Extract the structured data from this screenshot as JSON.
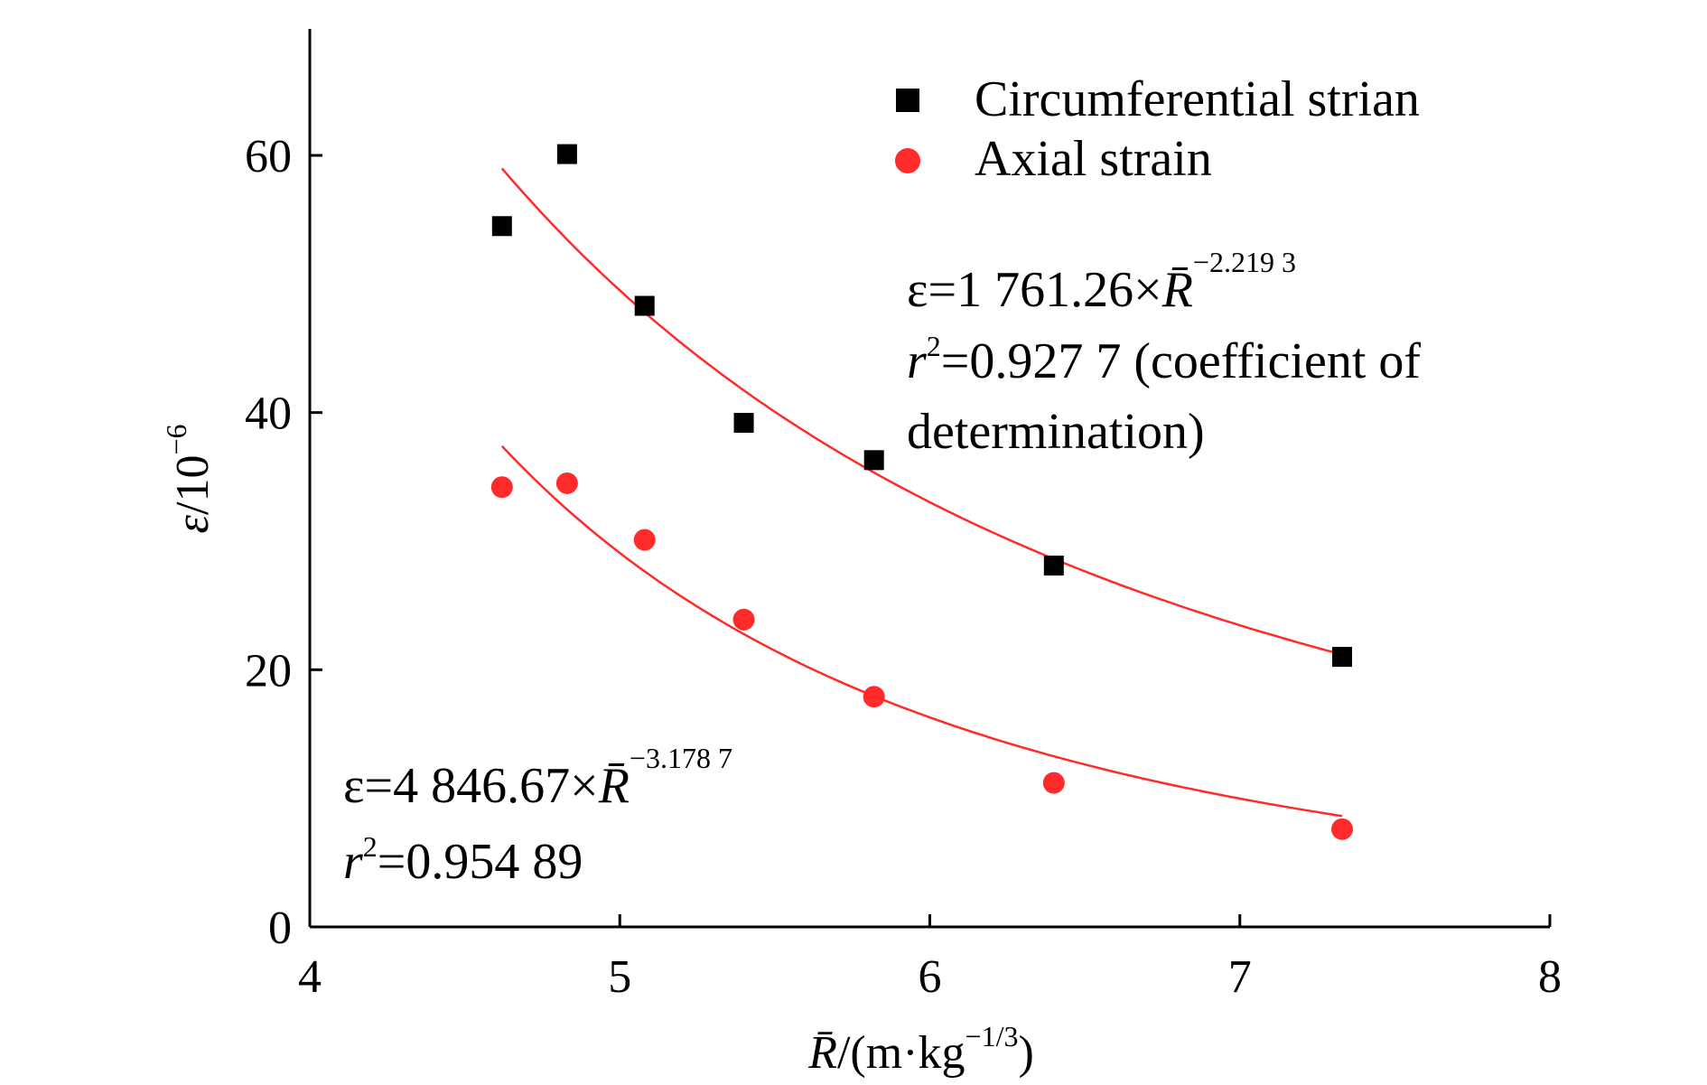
{
  "chart_data": {
    "type": "scatter",
    "xlabel": {
      "main": "R̄",
      "unit_open": "/(m·kg",
      "unit_exp": "−1/3",
      "unit_close": ")"
    },
    "ylabel": {
      "main": "ε/10",
      "exp": "−6"
    },
    "xlim": [
      4,
      8
    ],
    "ylim": [
      0,
      70
    ],
    "xticks": [
      4,
      5,
      6,
      7,
      8
    ],
    "yticks": [
      0,
      20,
      40,
      60
    ],
    "xtick_labels": [
      "4",
      "5",
      "6",
      "7",
      "8"
    ],
    "ytick_labels": [
      "0",
      "20",
      "40",
      "60"
    ],
    "grid": false,
    "legend_position": "top-right",
    "series": [
      {
        "name": "Circumferential strian",
        "marker": "square",
        "color": "#000000",
        "x": [
          4.62,
          4.83,
          5.08,
          5.4,
          5.82,
          6.4,
          7.33
        ],
        "y": [
          54.5,
          60.1,
          48.3,
          39.2,
          36.3,
          28.1,
          21.0
        ],
        "fit": {
          "a": 1761.26,
          "b": -2.2193,
          "color": "#ff2b2b"
        }
      },
      {
        "name": "Axial strain",
        "marker": "circle",
        "color": "#ff2b2b",
        "x": [
          4.62,
          4.83,
          5.08,
          5.4,
          5.82,
          6.4,
          7.33
        ],
        "y": [
          34.2,
          34.5,
          30.1,
          23.9,
          17.9,
          11.2,
          7.6
        ],
        "fit": {
          "a": 4846.67,
          "b": -3.1787,
          "color": "#ff2b2b"
        }
      }
    ],
    "annotations": {
      "circumferential": {
        "eq_prefix": "ε=1 761.26×",
        "eq_var": "R̄",
        "eq_exp": "−2.219 3",
        "r2_prefix": "r",
        "r2_exp": "2",
        "r2_value": "=0.927 7 (coefficient of",
        "r2_cont": "determination)"
      },
      "axial": {
        "eq_prefix": "ε=4 846.67×",
        "eq_var": "R̄",
        "eq_exp": "−3.178 7",
        "r2_prefix": "r",
        "r2_exp": "2",
        "r2_value": "=0.954 89"
      }
    }
  }
}
